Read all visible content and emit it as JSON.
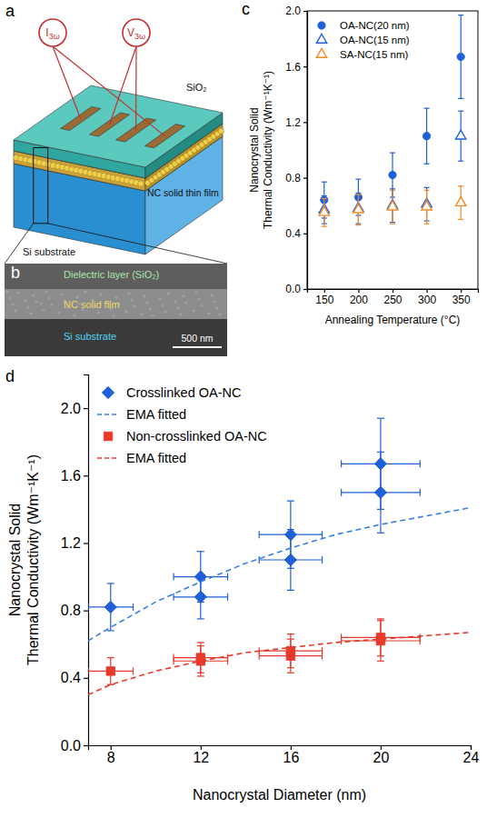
{
  "panel_labels": [
    "a",
    "b",
    "c",
    "d"
  ],
  "diagram": {
    "schematic": {
      "current": "I3ω",
      "voltage": "V3ω",
      "top_layer": "SiO₂",
      "film": "NC solid thin film",
      "substrate": "Si substrate"
    },
    "micrograph": {
      "top_layer": "Dielectric layer (SiO₂)",
      "film": "NC solid film",
      "substrate": "Si substrate",
      "scale_bar": "500 nm"
    }
  },
  "chart_data": [
    {
      "type": "scatter",
      "xlabel": "Annealing Temperature (°C)",
      "ylabel": "Nanocrystal Solid Thermal Conductivity (Wm⁻¹K⁻¹)",
      "xlim": [
        125,
        375
      ],
      "xticks": [
        150,
        200,
        250,
        300,
        350
      ],
      "ylim": [
        0,
        2
      ],
      "yticks": [
        {
          "value": 0,
          "label": "0.0"
        },
        0.4,
        0.8,
        1.2,
        1.6,
        {
          "value": 2,
          "label": "2.0"
        }
      ],
      "legend": "upper left",
      "series": [
        {
          "name": "OA-NC(20 nm)",
          "color": "#1f5fd8",
          "marker": "circle",
          "x": [
            150,
            200,
            250,
            300,
            350
          ],
          "values": [
            0.64,
            0.66,
            0.82,
            1.1,
            1.67
          ],
          "errors": [
            0.13,
            0.13,
            0.16,
            0.2,
            0.3
          ]
        },
        {
          "name": "OA-NC(15 nm)",
          "color": "#1f5fd8",
          "marker": "open-triangle",
          "x": [
            150,
            200,
            250,
            300,
            350
          ],
          "values": [
            0.57,
            0.58,
            0.6,
            0.61,
            1.1
          ],
          "errors": [
            0.1,
            0.11,
            0.12,
            0.12,
            0.18
          ]
        },
        {
          "name": "SA-NC(15 nm)",
          "color": "#f08a24",
          "marker": "open-triangle",
          "x": [
            150,
            200,
            250,
            300,
            350
          ],
          "values": [
            0.55,
            0.57,
            0.59,
            0.59,
            0.62
          ],
          "errors": [
            0.1,
            0.11,
            0.12,
            0.12,
            0.12
          ]
        }
      ]
    },
    {
      "type": "scatter",
      "xlabel": "Nanocrystal Diameter (nm)",
      "ylabel": "Nanocrystal Solid Thermal Conductivity (Wm⁻¹K⁻¹)",
      "xlim": [
        7,
        24
      ],
      "xticks": [
        8,
        12,
        16,
        20,
        24
      ],
      "ylim": [
        0,
        2.2
      ],
      "yticks": [
        {
          "value": 0,
          "label": "0.0"
        },
        0.4,
        0.8,
        1.2,
        1.6,
        {
          "value": 2,
          "label": "2.0"
        }
      ],
      "legend": "upper left",
      "series": [
        {
          "name": "Crosslinked OA-NC",
          "color": "#1f5fd8",
          "marker": "diamond",
          "x": [
            8,
            12,
            12,
            16,
            16,
            20,
            20
          ],
          "values": [
            0.82,
            1.0,
            0.88,
            1.25,
            1.1,
            1.67,
            1.5
          ],
          "errors": [
            0.14,
            0.15,
            0.13,
            0.2,
            0.18,
            0.27,
            0.24
          ],
          "x_errors": [
            1,
            1.2,
            1.2,
            1.4,
            1.4,
            1.75,
            1.75
          ]
        },
        {
          "name": "EMA fitted",
          "type": "line",
          "line_style": "dashed",
          "color": "#3a7fe0",
          "x": [
            7,
            8,
            10,
            12,
            14,
            16,
            18,
            20,
            22,
            24
          ],
          "values": [
            0.62,
            0.7,
            0.85,
            0.97,
            1.08,
            1.17,
            1.25,
            1.31,
            1.36,
            1.41
          ]
        },
        {
          "name": "Non-crosslinked OA-NC",
          "color": "#e8392b",
          "marker": "square",
          "x": [
            8,
            12,
            12,
            16,
            16,
            20,
            20
          ],
          "values": [
            0.44,
            0.5,
            0.52,
            0.53,
            0.56,
            0.62,
            0.64
          ],
          "errors": [
            0.08,
            0.09,
            0.09,
            0.1,
            0.1,
            0.12,
            0.11
          ],
          "x_errors": [
            1,
            1.2,
            1.2,
            1.4,
            1.4,
            1.75,
            1.75
          ]
        },
        {
          "name": "EMA fitted",
          "type": "line",
          "line_style": "dashed",
          "color": "#e8392b",
          "x": [
            7,
            8,
            10,
            12,
            14,
            16,
            18,
            20,
            22,
            24
          ],
          "values": [
            0.3,
            0.36,
            0.44,
            0.5,
            0.55,
            0.58,
            0.61,
            0.63,
            0.65,
            0.67
          ]
        }
      ]
    }
  ]
}
